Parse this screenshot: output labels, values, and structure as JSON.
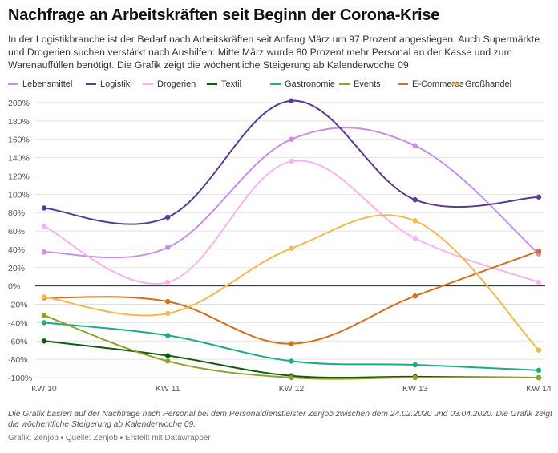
{
  "header": {
    "title": "Nachfrage an Arbeitskräften seit Beginn der Corona-Krise",
    "subtitle": "In der Logistikbranche ist der Bedarf nach Arbeitskräften seit Anfang März um 97 Prozent angestiegen. Auch Supermärkte und Drogerien suchen verstärkt nach Aushilfen: Mitte März wurde 80 Prozent mehr Personal an der Kasse und zum Warenauffüllen benötigt. Die Grafik zeigt die wöchentliche Steigerung ab Kalenderwoche 09."
  },
  "notes": "Die Grafik basiert auf der Nachfrage nach Personal bei dem Personaldienstleister Zenjob zwischen dem 24.02.2020 und 03.04.2020. Die Grafik zeigt die wöchentliche Steigerung ab Kalenderwoche 09.",
  "footer": "Grafik: Zenjob • Quelle: Zenjob • Erstellt mit Datawrapper",
  "chart_data": {
    "type": "line",
    "categories": [
      "KW 10",
      "KW 11",
      "KW 12",
      "KW 13",
      "KW 14"
    ],
    "y_ticks": [
      200,
      180,
      160,
      140,
      120,
      100,
      80,
      60,
      40,
      20,
      0,
      -20,
      -40,
      -60,
      -80,
      -100
    ],
    "y_tick_labels": [
      "200%",
      "180%",
      "160%",
      "140%",
      "120%",
      "100%",
      "80%",
      "60%",
      "40%",
      "20%",
      "0%",
      "-20%",
      "-40%",
      "-60%",
      "-80%",
      "-100%"
    ],
    "ylim": [
      -100,
      200
    ],
    "grid": true,
    "legend_position": "top",
    "series": [
      {
        "name": "Lebensmittel",
        "color": "#c98de6",
        "values": [
          37,
          42,
          160,
          153,
          35
        ]
      },
      {
        "name": "Logistik",
        "color": "#5c3a8e",
        "values": [
          85,
          75,
          202,
          94,
          97
        ]
      },
      {
        "name": "Drogerien",
        "color": "#f7b3f0",
        "values": [
          65,
          4,
          136,
          52,
          4
        ]
      },
      {
        "name": "Textil",
        "color": "#0e5a12",
        "values": [
          -60,
          -76,
          -98,
          -99,
          -100
        ]
      },
      {
        "name": "Gastronomie",
        "color": "#1eaa8a",
        "values": [
          -40,
          -54,
          -82,
          -86,
          -92
        ]
      },
      {
        "name": "Events",
        "color": "#8ea22a",
        "values": [
          -32,
          -82,
          -100,
          -100,
          -100
        ]
      },
      {
        "name": "E-Commerce",
        "color": "#d2701e",
        "values": [
          -13,
          -17,
          -63,
          -11,
          38
        ]
      },
      {
        "name": "Großhandel",
        "color": "#f1b950",
        "values": [
          -12,
          -30,
          41,
          71,
          -70
        ]
      }
    ]
  }
}
